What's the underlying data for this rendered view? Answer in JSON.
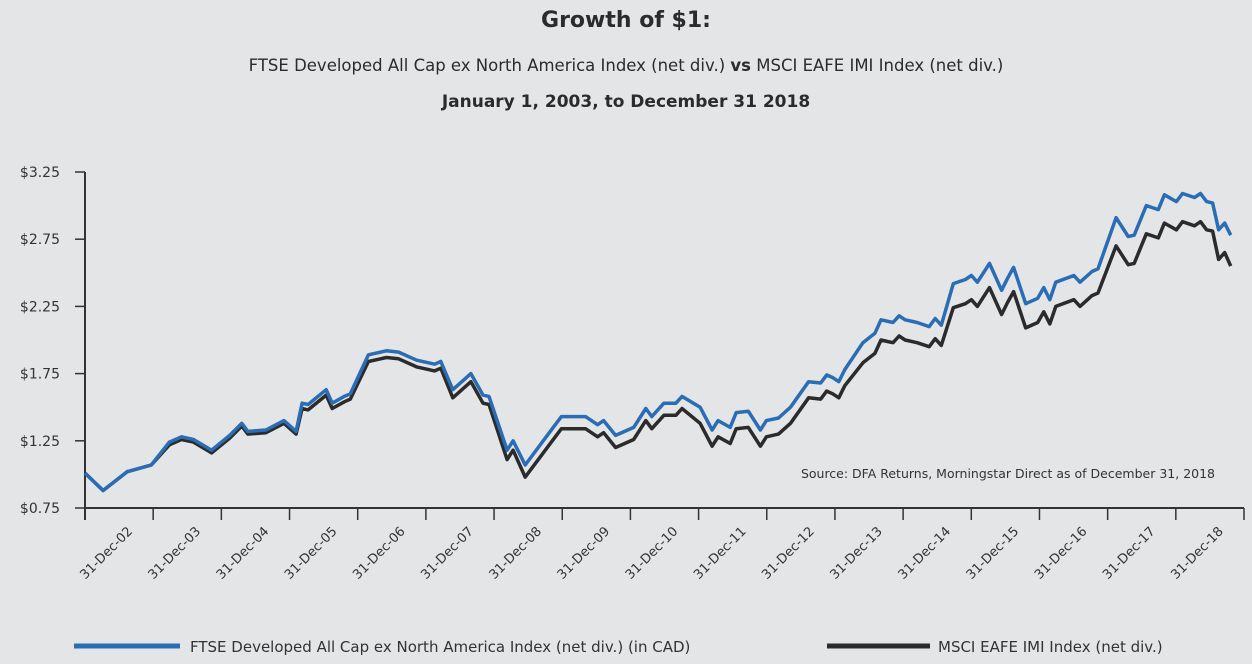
{
  "chart_data": {
    "type": "line",
    "title": "Growth of $1:",
    "subtitle_a": "FTSE Developed All Cap ex North America Index (net div.)",
    "subtitle_vs": "vs",
    "subtitle_b": "MSCI EAFE IMI Index (net div.)",
    "date_range": "January 1, 2003, to December 31 2018",
    "source": "Source: DFA Returns, Morningstar Direct as of December 31, 2018",
    "ylim": [
      0.75,
      3.25
    ],
    "yticks": [
      "$0.75",
      "$1.25",
      "$1.75",
      "$2.25",
      "$2.75",
      "$3.25"
    ],
    "ytick_values": [
      0.75,
      1.25,
      1.75,
      2.25,
      2.75,
      3.25
    ],
    "xtick_labels": [
      "31-Dec-02",
      "31-Dec-03",
      "31-Dec-04",
      "31-Dec-05",
      "31-Dec-06",
      "31-Dec-07",
      "31-Dec-08",
      "31-Dec-09",
      "31-Dec-10",
      "31-Dec-11",
      "31-Dec-12",
      "31-Dec-13",
      "31-Dec-14",
      "31-Dec-15",
      "31-Dec-16",
      "31-Dec-17",
      "31-Dec-18"
    ],
    "grid": false,
    "legend_position": "bottom",
    "dates": [
      "2002-12",
      "2003-03",
      "2003-07",
      "2003-11",
      "2004-02",
      "2004-04",
      "2004-06",
      "2004-09",
      "2004-12",
      "2005-02",
      "2005-03",
      "2005-06",
      "2005-09",
      "2005-11",
      "2005-12",
      "2006-01",
      "2006-04",
      "2006-05",
      "2006-07",
      "2006-08",
      "2006-11",
      "2007-02",
      "2007-04",
      "2007-07",
      "2007-10",
      "2007-11",
      "2008-01",
      "2008-04",
      "2008-06",
      "2008-07",
      "2008-10",
      "2008-11",
      "2009-01",
      "2009-05",
      "2009-07",
      "2009-11",
      "2010-01",
      "2010-02",
      "2010-04",
      "2010-07",
      "2010-09",
      "2010-10",
      "2010-12",
      "2011-02",
      "2011-03",
      "2011-06",
      "2011-08",
      "2011-09",
      "2011-11",
      "2011-12",
      "2012-02",
      "2012-04",
      "2012-05",
      "2012-07",
      "2012-09",
      "2012-12",
      "2013-02",
      "2013-03",
      "2013-04",
      "2013-05",
      "2013-06",
      "2013-09",
      "2013-11",
      "2013-12",
      "2014-02",
      "2014-03",
      "2014-04",
      "2014-06",
      "2014-08",
      "2014-09",
      "2014-10",
      "2014-12",
      "2015-02",
      "2015-03",
      "2015-04",
      "2015-06",
      "2015-08",
      "2015-09",
      "2015-10",
      "2015-12",
      "2016-02",
      "2016-03",
      "2016-04",
      "2016-05",
      "2016-08",
      "2016-09",
      "2016-11",
      "2016-12",
      "2017-03",
      "2017-05",
      "2017-06",
      "2017-08",
      "2017-10",
      "2017-11",
      "2018-01",
      "2018-02",
      "2018-04",
      "2018-05",
      "2018-06",
      "2018-07",
      "2018-08",
      "2018-09",
      "2018-10"
    ],
    "series": [
      {
        "name": "FTSE Developed All Cap ex North America Index (net div.) (in CAD)",
        "color": "#2a6db5",
        "values": [
          1.01,
          0.88,
          1.02,
          1.07,
          1.24,
          1.28,
          1.26,
          1.18,
          1.29,
          1.38,
          1.32,
          1.33,
          1.4,
          1.32,
          1.53,
          1.52,
          1.63,
          1.53,
          1.58,
          1.6,
          1.89,
          1.92,
          1.91,
          1.85,
          1.82,
          1.84,
          1.63,
          1.75,
          1.59,
          1.58,
          1.18,
          1.25,
          1.07,
          1.31,
          1.43,
          1.43,
          1.37,
          1.4,
          1.29,
          1.35,
          1.49,
          1.43,
          1.53,
          1.53,
          1.58,
          1.5,
          1.33,
          1.4,
          1.35,
          1.46,
          1.47,
          1.33,
          1.4,
          1.42,
          1.5,
          1.69,
          1.68,
          1.74,
          1.72,
          1.69,
          1.78,
          1.98,
          2.05,
          2.15,
          2.13,
          2.18,
          2.15,
          2.13,
          2.1,
          2.16,
          2.11,
          2.42,
          2.45,
          2.48,
          2.43,
          2.57,
          2.37,
          2.46,
          2.54,
          2.27,
          2.31,
          2.39,
          2.3,
          2.43,
          2.48,
          2.43,
          2.51,
          2.53,
          2.91,
          2.77,
          2.78,
          3.0,
          2.97,
          3.08,
          3.03,
          3.09,
          3.06,
          3.09,
          3.03,
          3.02,
          2.82,
          2.87,
          2.78
        ]
      },
      {
        "name": "MSCI EAFE IMI Index (net div.)",
        "color": "#2b2b2b",
        "values": [
          1.01,
          0.88,
          1.02,
          1.07,
          1.22,
          1.26,
          1.24,
          1.16,
          1.27,
          1.36,
          1.3,
          1.31,
          1.38,
          1.3,
          1.49,
          1.48,
          1.59,
          1.49,
          1.54,
          1.56,
          1.84,
          1.87,
          1.86,
          1.8,
          1.77,
          1.79,
          1.57,
          1.69,
          1.53,
          1.52,
          1.11,
          1.18,
          0.98,
          1.22,
          1.34,
          1.34,
          1.28,
          1.31,
          1.2,
          1.26,
          1.4,
          1.34,
          1.44,
          1.44,
          1.49,
          1.38,
          1.21,
          1.28,
          1.23,
          1.34,
          1.35,
          1.21,
          1.28,
          1.3,
          1.38,
          1.57,
          1.56,
          1.62,
          1.6,
          1.57,
          1.66,
          1.83,
          1.9,
          2.0,
          1.98,
          2.03,
          2.0,
          1.98,
          1.95,
          2.01,
          1.96,
          2.24,
          2.27,
          2.3,
          2.25,
          2.39,
          2.19,
          2.28,
          2.36,
          2.09,
          2.13,
          2.21,
          2.12,
          2.25,
          2.3,
          2.25,
          2.33,
          2.35,
          2.7,
          2.56,
          2.57,
          2.79,
          2.76,
          2.87,
          2.82,
          2.88,
          2.85,
          2.88,
          2.82,
          2.81,
          2.6,
          2.65,
          2.55
        ]
      }
    ]
  }
}
